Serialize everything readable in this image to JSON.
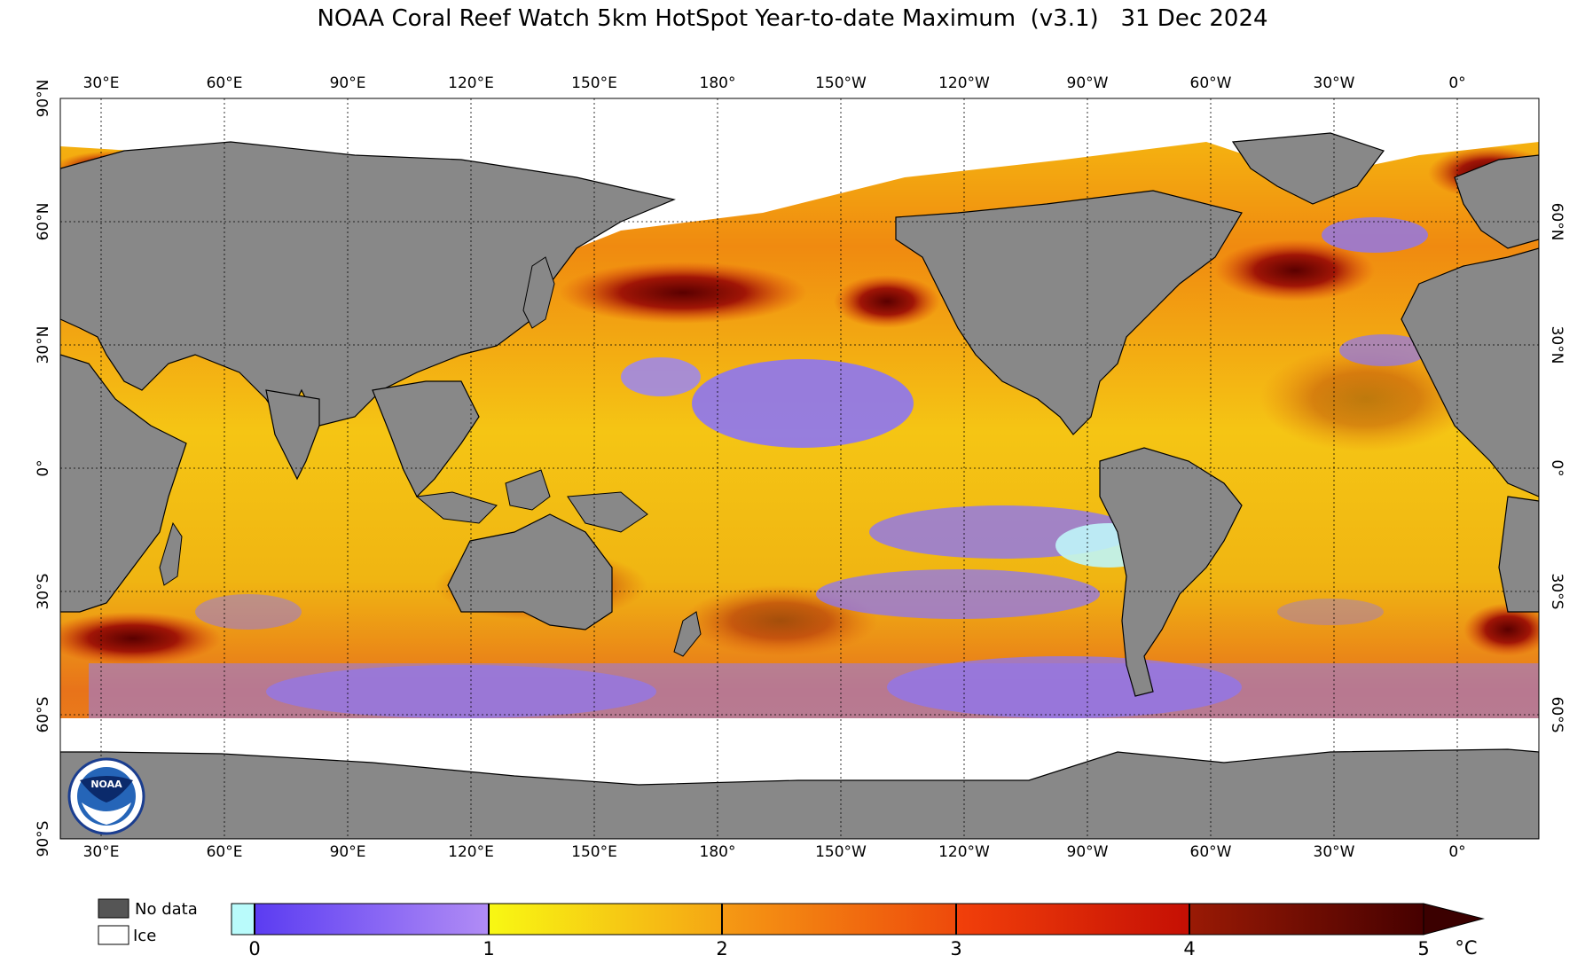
{
  "title": "NOAA Coral Reef Watch 5km HotSpot Year-to-date Maximum  (v3.1)   31 Dec 2024",
  "map": {
    "lon_labels": [
      "30°E",
      "60°E",
      "90°E",
      "120°E",
      "150°E",
      "180°",
      "150°W",
      "120°W",
      "90°W",
      "60°W",
      "30°W",
      "0°"
    ],
    "lat_labels_left": [
      "90°N",
      "60°N",
      "30°N",
      "0°",
      "30°S",
      "60°S",
      "90°S"
    ],
    "lat_labels_right": [
      "60°N",
      "30°N",
      "0°",
      "30°S",
      "60°S"
    ],
    "colors": {
      "land": "#888888",
      "ice": "#ffffff",
      "no_data": "#555555",
      "coastline": "#000000"
    },
    "logo_text": "NOAA"
  },
  "legend": {
    "no_data_label": "No data",
    "ice_label": "Ice"
  },
  "colorbar": {
    "ticks": [
      "0",
      "1",
      "2",
      "3",
      "4",
      "5"
    ],
    "unit": "°C",
    "colors": {
      "zero": "#b9fbfb",
      "purple_dark": "#5b3cf2",
      "purple_light": "#b18cf5",
      "yellow": "#f8f813",
      "orange": "#f59a14",
      "orange_red": "#f1520b",
      "red": "#e51a04",
      "dark_red": "#8b1206",
      "maroon": "#3b0000"
    }
  }
}
